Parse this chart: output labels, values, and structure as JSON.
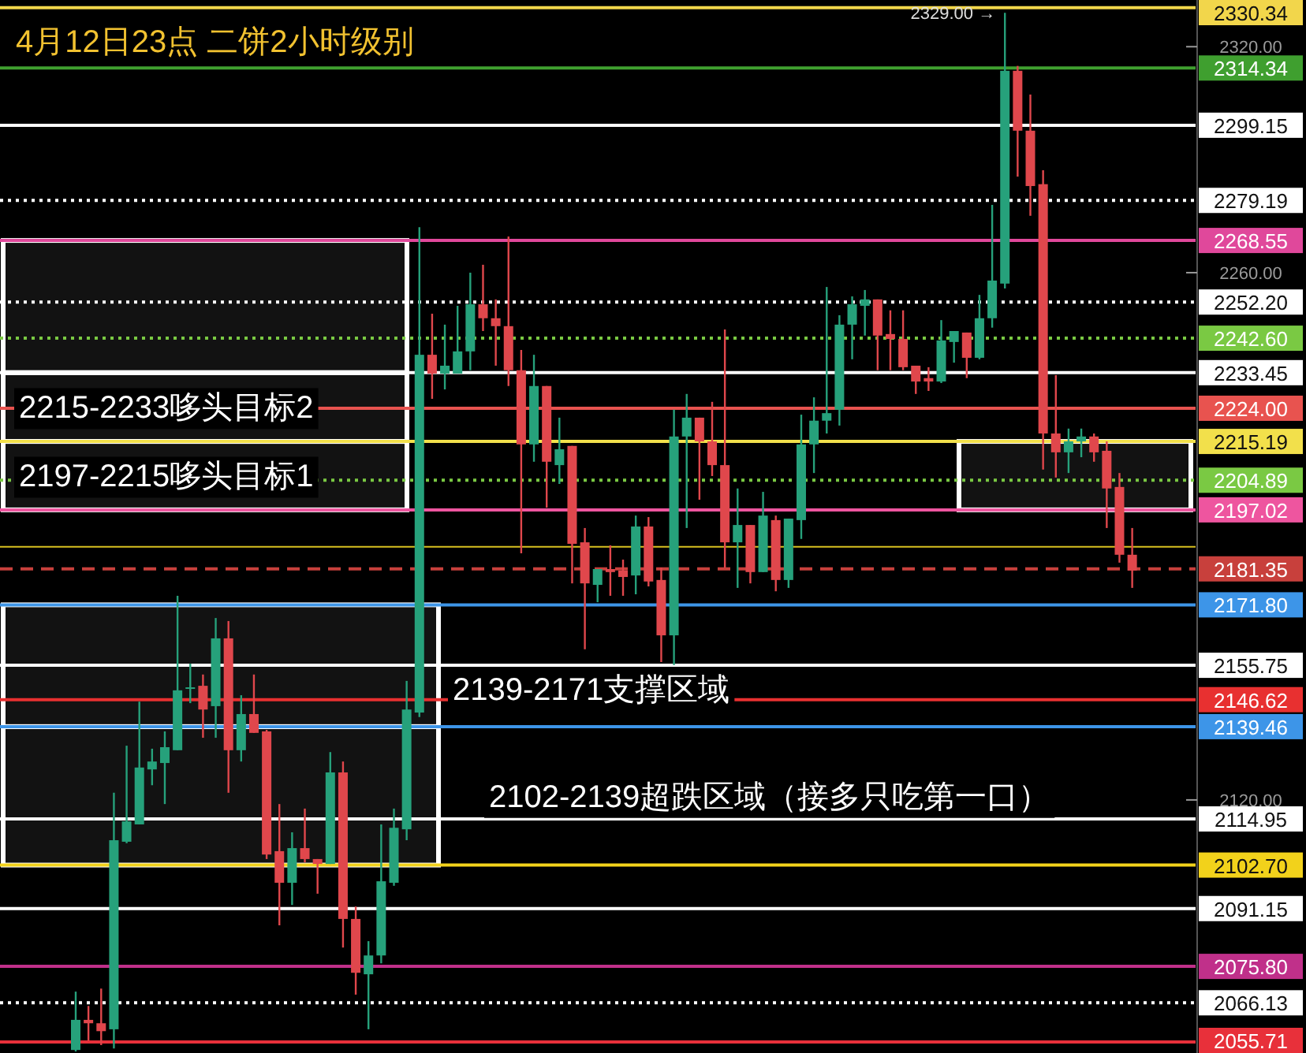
{
  "chart_data": {
    "type": "candlestick",
    "title": "4月12日23点  二饼2小时级别",
    "categories": [
      null,
      null,
      null,
      null,
      null,
      null,
      null,
      null,
      null,
      null,
      null,
      null,
      null,
      null,
      null,
      null,
      null,
      null,
      null,
      null,
      null,
      null,
      null,
      null,
      null,
      null,
      null,
      null,
      null,
      null,
      null,
      null,
      null,
      null,
      null,
      null,
      null,
      null,
      null,
      null,
      null,
      null,
      null,
      null,
      null,
      null,
      null,
      null,
      null,
      null,
      null,
      null,
      null,
      null,
      null,
      null,
      null,
      null,
      null,
      null,
      null,
      null,
      null,
      null,
      null,
      null,
      null,
      null,
      null,
      null,
      null,
      null,
      null,
      null,
      null,
      null,
      null,
      null,
      null,
      null,
      null,
      null,
      null,
      null
    ],
    "ohlc": [
      [
        2053.6,
        2069.1,
        2053.2,
        2061.6
      ],
      [
        2061.6,
        2065.3,
        2056.1,
        2060.7
      ],
      [
        2060.7,
        2069.9,
        2054.9,
        2058.6
      ],
      [
        2059.1,
        2121.9,
        2054.0,
        2109.3
      ],
      [
        2108.9,
        2134.4,
        2108.5,
        2114.3
      ],
      [
        2113.5,
        2146.1,
        2113.5,
        2128.6
      ],
      [
        2128.1,
        2133.6,
        2123.9,
        2130.2
      ],
      [
        2129.8,
        2138.2,
        2118.9,
        2134.0
      ],
      [
        2133.2,
        2174.2,
        2133.2,
        2149.1
      ],
      [
        2149.5,
        2156.2,
        2145.7,
        2149.9
      ],
      [
        2150.3,
        2153.3,
        2136.5,
        2144.0
      ],
      [
        2144.9,
        2168.3,
        2136.5,
        2162.9
      ],
      [
        2162.9,
        2167.5,
        2121.9,
        2133.2
      ],
      [
        2133.2,
        2147.8,
        2130.2,
        2142.8
      ],
      [
        2142.8,
        2153.3,
        2137.8,
        2137.8
      ],
      [
        2138.2,
        2138.6,
        2104.3,
        2105.5
      ],
      [
        2106.4,
        2118.9,
        2086.7,
        2098.0
      ],
      [
        2098.0,
        2111.4,
        2092.1,
        2107.2
      ],
      [
        2107.2,
        2117.7,
        2103.4,
        2104.3
      ],
      [
        2104.3,
        2104.3,
        2095.1,
        2103.0
      ],
      [
        2103.0,
        2132.7,
        2103.0,
        2127.3
      ],
      [
        2127.3,
        2130.2,
        2080.8,
        2088.4
      ],
      [
        2088.4,
        2091.7,
        2068.3,
        2074.1
      ],
      [
        2073.7,
        2082.5,
        2059.1,
        2078.7
      ],
      [
        2078.7,
        2113.5,
        2076.6,
        2098.4
      ],
      [
        2098.0,
        2117.7,
        2097.2,
        2112.6
      ],
      [
        2112.2,
        2151.6,
        2109.3,
        2144.0
      ],
      [
        2143.2,
        2272.1,
        2142.0,
        2238.2
      ],
      [
        2238.2,
        2249.1,
        2226.5,
        2233.2
      ],
      [
        2233.2,
        2246.2,
        2229.0,
        2235.3
      ],
      [
        2233.2,
        2251.2,
        2233.2,
        2239.1
      ],
      [
        2239.1,
        2260.0,
        2234.1,
        2251.6
      ],
      [
        2251.6,
        2262.1,
        2244.5,
        2247.9
      ],
      [
        2247.9,
        2252.9,
        2235.3,
        2245.8
      ],
      [
        2245.8,
        2269.6,
        2229.9,
        2234.1
      ],
      [
        2234.1,
        2239.5,
        2185.5,
        2214.4
      ],
      [
        2214.4,
        2238.2,
        2209.8,
        2229.9
      ],
      [
        2229.9,
        2229.9,
        2197.6,
        2209.8
      ],
      [
        2208.9,
        2221.5,
        2203.9,
        2213.1
      ],
      [
        2214.0,
        2214.0,
        2177.5,
        2188.0
      ],
      [
        2188.4,
        2192.2,
        2160.0,
        2177.5
      ],
      [
        2177.1,
        2181.3,
        2172.5,
        2181.3
      ],
      [
        2181.3,
        2187.6,
        2174.2,
        2180.5
      ],
      [
        2180.9,
        2183.8,
        2174.2,
        2179.2
      ],
      [
        2179.6,
        2195.5,
        2174.6,
        2192.6
      ],
      [
        2192.6,
        2195.1,
        2176.7,
        2178.0
      ],
      [
        2178.4,
        2181.7,
        2156.6,
        2163.7
      ],
      [
        2163.7,
        2223.6,
        2155.8,
        2216.5
      ],
      [
        2216.5,
        2227.8,
        2192.2,
        2221.5
      ],
      [
        2221.5,
        2221.5,
        2199.7,
        2215.2
      ],
      [
        2215.2,
        2225.7,
        2206.0,
        2208.9
      ],
      [
        2208.9,
        2244.9,
        2181.7,
        2188.4
      ],
      [
        2188.4,
        2202.7,
        2176.3,
        2193.0
      ],
      [
        2193.0,
        2193.0,
        2177.5,
        2180.5
      ],
      [
        2180.5,
        2201.8,
        2180.5,
        2195.5
      ],
      [
        2194.3,
        2195.5,
        2175.4,
        2178.4
      ],
      [
        2178.4,
        2194.7,
        2176.3,
        2194.7
      ],
      [
        2194.3,
        2222.3,
        2189.3,
        2214.4
      ],
      [
        2214.4,
        2226.9,
        2206.8,
        2220.7
      ],
      [
        2220.7,
        2256.2,
        2217.3,
        2222.7
      ],
      [
        2223.6,
        2248.7,
        2219.4,
        2246.2
      ],
      [
        2246.2,
        2253.7,
        2237.0,
        2251.6
      ],
      [
        2251.2,
        2255.4,
        2243.3,
        2252.9
      ],
      [
        2252.9,
        2252.9,
        2234.1,
        2243.3
      ],
      [
        2243.7,
        2250.0,
        2234.1,
        2242.4
      ],
      [
        2242.4,
        2250.0,
        2234.1,
        2234.9
      ],
      [
        2235.3,
        2235.3,
        2227.8,
        2231.1
      ],
      [
        2232.0,
        2234.9,
        2228.6,
        2231.1
      ],
      [
        2231.1,
        2247.4,
        2230.7,
        2242.0
      ],
      [
        2241.6,
        2244.5,
        2236.1,
        2244.5
      ],
      [
        2244.1,
        2244.1,
        2232.0,
        2237.4
      ],
      [
        2237.4,
        2254.1,
        2237.0,
        2247.9
      ],
      [
        2247.9,
        2278.0,
        2245.4,
        2257.9
      ],
      [
        2257.1,
        2329.0,
        2255.8,
        2313.6
      ],
      [
        2313.6,
        2314.9,
        2285.5,
        2297.7
      ],
      [
        2297.7,
        2307.3,
        2275.1,
        2283.0
      ],
      [
        2283.5,
        2287.2,
        2207.7,
        2217.3
      ],
      [
        2217.3,
        2232.8,
        2205.6,
        2212.3
      ],
      [
        2212.3,
        2218.6,
        2206.8,
        2215.2
      ],
      [
        2215.2,
        2218.6,
        2211.0,
        2216.5
      ],
      [
        2216.5,
        2217.3,
        2209.8,
        2212.3
      ],
      [
        2212.7,
        2215.2,
        2192.2,
        2202.7
      ],
      [
        2203.1,
        2206.8,
        2183.0,
        2185.1
      ],
      [
        2185.1,
        2192.2,
        2176.3,
        2180.9
      ]
    ],
    "ylim": [
      2052.8,
      2332.4
    ],
    "yticks": [
      {
        "value": 2320,
        "label": "2320.00"
      },
      {
        "value": 2260,
        "label": "2260.00"
      },
      {
        "value": 2120,
        "label": "2120.00"
      }
    ],
    "ref_lines": [
      {
        "axis": "y",
        "value": 2330.34,
        "label": "2330.34",
        "color": "#f2d64b"
      },
      {
        "axis": "y",
        "value": 2314.34,
        "label": "2314.34",
        "color": "#3f9f2f"
      },
      {
        "axis": "y",
        "value": 2299.15,
        "label": "2299.15",
        "color": "#ffffff"
      },
      {
        "axis": "y",
        "value": 2279.19,
        "label": "2279.19",
        "color": "#ffffff",
        "line_style": "dotted"
      },
      {
        "axis": "y",
        "value": 2268.55,
        "label": "2268.55",
        "color": "#e0489b"
      },
      {
        "axis": "y",
        "value": 2252.2,
        "label": "2252.20",
        "color": "#ffffff",
        "line_style": "dotted"
      },
      {
        "axis": "y",
        "value": 2242.6,
        "label": "2242.60",
        "color": "#7ac943",
        "line_style": "dotted"
      },
      {
        "axis": "y",
        "value": 2233.45,
        "label": "2233.45",
        "color": "#ffffff"
      },
      {
        "axis": "y",
        "value": 2224.0,
        "label": "2224.00",
        "color": "#e8534f"
      },
      {
        "axis": "y",
        "value": 2215.19,
        "label": "2215.19",
        "color": "#f2e04b"
      },
      {
        "axis": "y",
        "value": 2204.89,
        "label": "2204.89",
        "color": "#7ac943",
        "line_style": "dotted"
      },
      {
        "axis": "y",
        "value": 2197.02,
        "label": "2197.02",
        "color": "#ee559f"
      },
      {
        "axis": "y",
        "value": 2187.2,
        "color": "#d8c020"
      },
      {
        "axis": "y",
        "value": 2181.35,
        "label": "2181.35",
        "color": "#c8403c",
        "line_style": "dashed"
      },
      {
        "axis": "y",
        "value": 2171.8,
        "label": "2171.80",
        "color": "#3d95e8"
      },
      {
        "axis": "y",
        "value": 2155.75,
        "label": "2155.75",
        "color": "#ffffff"
      },
      {
        "axis": "y",
        "value": 2146.62,
        "label": "2146.62",
        "color": "#e83030"
      },
      {
        "axis": "y",
        "value": 2139.46,
        "label": "2139.46",
        "color": "#3d95e8"
      },
      {
        "axis": "y",
        "value": 2114.95,
        "label": "2114.95",
        "color": "#ffffff"
      },
      {
        "axis": "y",
        "value": 2102.7,
        "label": "2102.70",
        "color": "#f2d21b"
      },
      {
        "axis": "y",
        "value": 2091.15,
        "label": "2091.15",
        "color": "#ffffff"
      },
      {
        "axis": "y",
        "value": 2075.8,
        "label": "2075.80",
        "color": "#c0308a"
      },
      {
        "axis": "y",
        "value": 2066.13,
        "label": "2066.13",
        "color": "#ffffff",
        "line_style": "dotted"
      },
      {
        "axis": "y",
        "value": 2055.71,
        "label": "2055.71",
        "color": "#e8303a"
      }
    ],
    "bands": [
      {
        "axis": "y",
        "from": 2233.45,
        "to": 2268.55,
        "color": "#ffffff"
      },
      {
        "axis": "y",
        "from": 2215.19,
        "to": 2233.45,
        "label": "2215-2233哆头目标2",
        "color": "#ffffff"
      },
      {
        "axis": "y",
        "from": 2197.02,
        "to": 2215.19,
        "label": "2197-2215哆头目标1",
        "color": "#ffffff"
      },
      {
        "axis": "y",
        "from": 2139.46,
        "to": 2171.8,
        "label": "2139-2171支撑区域",
        "color": "#ffffff"
      },
      {
        "axis": "y",
        "from": 2102.7,
        "to": 2139.46,
        "label": "2102-2139超跌区域（接多只吃第一口）",
        "color": "#ffffff"
      },
      {
        "axis": "y",
        "from": 2197.02,
        "to": 2215.19,
        "color": "#ffffff"
      }
    ],
    "annotations": [
      {
        "text": "2329.00 →",
        "y": 2329.0
      }
    ]
  }
}
